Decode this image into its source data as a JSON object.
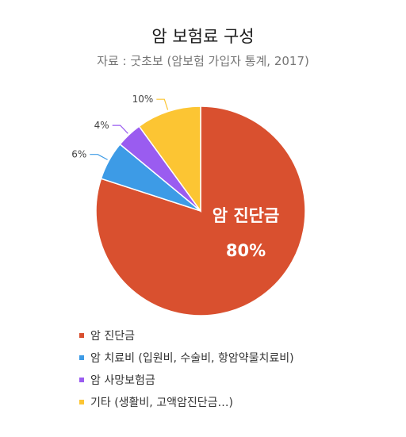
{
  "chart_data": {
    "type": "pie",
    "title": "암 보험료 구성",
    "subtitle": "자료 : 굿초보 (암보험 가입자 통계, 2017)",
    "slices": [
      {
        "label": "암 진단금",
        "value": 80,
        "value_label": "80%",
        "color": "#d9502f"
      },
      {
        "label": "암 치료비 (입원비, 수술비, 항암약물치료비)",
        "value": 6,
        "value_label": "6%",
        "color": "#3d9be6"
      },
      {
        "label": "암 사망보험금",
        "value": 4,
        "value_label": "4%",
        "color": "#9a5cf0"
      },
      {
        "label": "기타 (생활비, 고액암진단금…)",
        "value": 10,
        "value_label": "10%",
        "color": "#fcc533"
      }
    ],
    "inside_label": {
      "name": "암 진단금",
      "value": "80%"
    },
    "legend_position": "bottom-left"
  }
}
